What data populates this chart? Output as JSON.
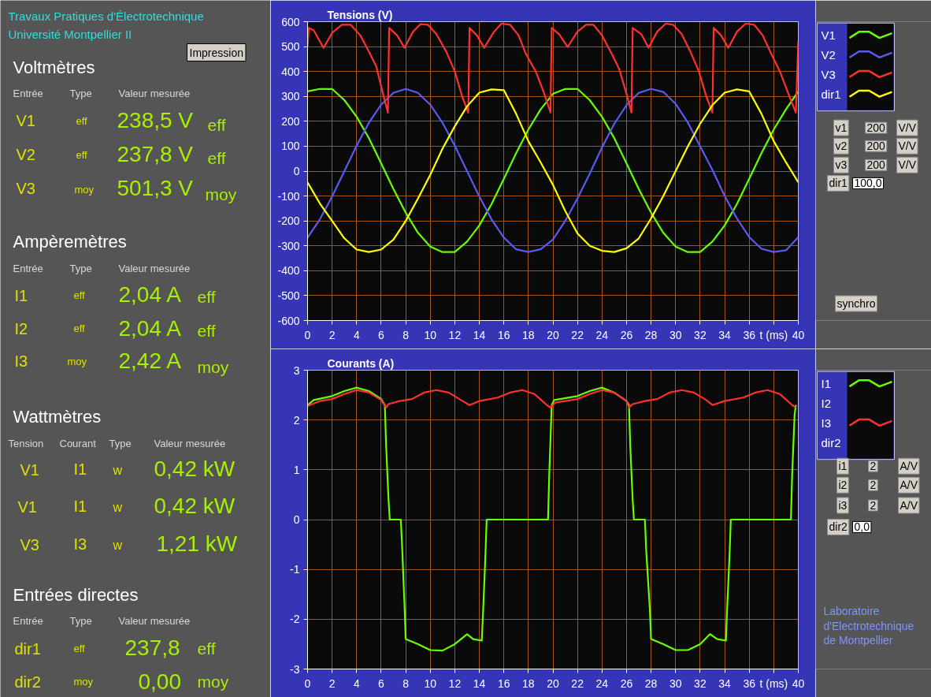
{
  "chart_data": [
    {
      "type": "other",
      "annotations": [
        "Travaux Pratiques d'Électrotechnique",
        "Université Montpellier II",
        "Impression",
        "Voltmètres",
        "Entrée",
        "Type",
        "Valeur mesurée",
        "V1",
        "eff",
        "238,5 V",
        "eff",
        "V2",
        "eff",
        "237,8 V",
        "eff",
        "V3",
        "moy",
        "501,3 V",
        "moy",
        "Ampèremètres",
        "Entrée",
        "Type",
        "Valeur mesurée",
        "I1",
        "eff",
        "2,04 A",
        "eff",
        "I2",
        "eff",
        "2,04 A",
        "eff",
        "I3",
        "moy",
        "2,42 A",
        "moy",
        "Wattmètres",
        "Tension",
        "Courant",
        "Type",
        "Valeur mesurée",
        "V1",
        "I1",
        "w",
        "0,42 kW",
        "V1",
        "I1",
        "w",
        "0,42 kW",
        "V3",
        "I3",
        "w",
        "1,21 kW",
        "Entrées directes",
        "Entrée",
        "Type",
        "Valeur mesurée",
        "dir1",
        "eff",
        "237,8",
        "eff",
        "dir2",
        "moy",
        "0,00",
        "moy"
      ]
    },
    {
      "type": "line",
      "title": "Tensions (V)",
      "xlabel": "t (ms)",
      "xlim": [
        0,
        40
      ],
      "ylim": [
        -600,
        600
      ],
      "xticks": [
        0,
        2,
        4,
        6,
        8,
        10,
        12,
        14,
        16,
        18,
        20,
        22,
        24,
        26,
        28,
        30,
        32,
        34,
        36,
        {
          "value": 38,
          "label": null
        },
        40
      ],
      "yticks": [
        -600,
        -500,
        -400,
        -300,
        -200,
        -100,
        0,
        100,
        200,
        300,
        400,
        500,
        600
      ],
      "grid": true,
      "legend": "right",
      "annotations": [
        "v1",
        "200",
        "V/V",
        "v2",
        "200",
        "V/V",
        "v3",
        "200",
        "V/V",
        "dir1",
        "100,0",
        "synchro"
      ],
      "series": [
        {
          "name": "V1",
          "color": "#66ff00",
          "x": [
            0,
            1,
            2,
            3,
            4,
            5,
            6,
            7,
            8,
            9,
            10,
            11,
            12,
            13,
            14,
            15,
            16,
            17,
            18,
            19,
            20,
            21,
            22,
            23,
            24,
            25,
            26,
            27,
            28,
            29,
            30,
            31,
            32,
            33,
            34,
            35,
            36,
            37,
            38,
            39,
            40
          ],
          "values": [
            320,
            330,
            330,
            285,
            218,
            132,
            31,
            -72,
            -167,
            -248,
            -303,
            -325,
            -325,
            -283,
            -218,
            -132,
            -31,
            72,
            167,
            248,
            310,
            330,
            330,
            285,
            218,
            132,
            31,
            -72,
            -167,
            -248,
            -303,
            -325,
            -325,
            -283,
            -218,
            -132,
            -31,
            72,
            167,
            248,
            320
          ]
        },
        {
          "name": "V2",
          "color": "#5a5aee",
          "x": [
            0,
            1,
            2,
            3,
            4,
            5,
            6,
            7,
            8,
            9,
            10,
            11,
            12,
            13,
            14,
            15,
            16,
            17,
            18,
            19,
            20,
            21,
            22,
            23,
            24,
            25,
            26,
            27,
            28,
            29,
            30,
            31,
            32,
            33,
            34,
            35,
            36,
            37,
            38,
            39,
            40
          ],
          "values": [
            -267,
            -194,
            -102,
            0,
            102,
            194,
            267,
            314,
            330,
            314,
            267,
            194,
            102,
            0,
            -102,
            -194,
            -267,
            -314,
            -325,
            -314,
            -275,
            -200,
            -110,
            -10,
            95,
            190,
            265,
            314,
            330,
            318,
            270,
            195,
            100,
            5,
            -100,
            -190,
            -265,
            -312,
            -325,
            -318,
            -265
          ]
        },
        {
          "name": "V3",
          "color": "#ff3030",
          "x": [
            0,
            0.1,
            0.5,
            1.3,
            2,
            2.8,
            3.5,
            4.3,
            5,
            5.6,
            6.1,
            6.55,
            6.65,
            7.3,
            7.9,
            8.6,
            9.2,
            9.8,
            10.5,
            11.3,
            12,
            12.6,
            13.1,
            13.2,
            13.8,
            14.4,
            15.2,
            15.8,
            16.5,
            17.2,
            17.8,
            18.6,
            19.3,
            19.8,
            19.9,
            20.5,
            21.2,
            22,
            22.7,
            23.3,
            24,
            24.8,
            25.4,
            26,
            26.4,
            26.5,
            27.2,
            27.8,
            28.5,
            29.2,
            29.8,
            30.5,
            31.2,
            31.9,
            32.5,
            33,
            33.1,
            33.7,
            34.3,
            35,
            35.7,
            36.4,
            37.1,
            37.8,
            38.5,
            39.2,
            39.8,
            39.9,
            40
          ],
          "values": [
            500,
            575,
            565,
            495,
            555,
            588,
            588,
            545,
            480,
            420,
            320,
            235,
            575,
            545,
            495,
            560,
            590,
            588,
            550,
            480,
            400,
            300,
            235,
            575,
            545,
            495,
            560,
            592,
            588,
            545,
            470,
            400,
            310,
            235,
            575,
            550,
            498,
            560,
            588,
            588,
            545,
            470,
            410,
            310,
            235,
            575,
            550,
            495,
            560,
            592,
            588,
            550,
            480,
            400,
            300,
            235,
            575,
            545,
            495,
            560,
            592,
            588,
            545,
            470,
            400,
            310,
            235,
            380,
            520
          ]
        },
        {
          "name": "dir1",
          "color": "#ffff00",
          "x": [
            0,
            1,
            2,
            3,
            4,
            5,
            6,
            7,
            8,
            9,
            10,
            11,
            12,
            13,
            14,
            15,
            16,
            17,
            18,
            19,
            20,
            21,
            22,
            23,
            24,
            25,
            26,
            27,
            28,
            29,
            30,
            31,
            32,
            33,
            34,
            35,
            36,
            37,
            38,
            39,
            40
          ],
          "values": [
            -45,
            -130,
            -200,
            -270,
            -315,
            -325,
            -315,
            -275,
            -200,
            -110,
            -15,
            90,
            180,
            260,
            315,
            328,
            325,
            230,
            120,
            35,
            -55,
            -160,
            -250,
            -300,
            -320,
            -325,
            -310,
            -270,
            -190,
            -100,
            0,
            100,
            190,
            265,
            315,
            328,
            320,
            230,
            120,
            35,
            -45
          ]
        }
      ]
    },
    {
      "type": "line",
      "title": "Courants (A)",
      "xlabel": "t (ms)",
      "xlim": [
        0,
        40
      ],
      "ylim": [
        -3,
        3
      ],
      "xticks": [
        0,
        2,
        4,
        6,
        8,
        10,
        12,
        14,
        16,
        18,
        20,
        22,
        24,
        26,
        28,
        30,
        32,
        34,
        36,
        {
          "value": 38,
          "label": null
        },
        40
      ],
      "yticks": [
        -3,
        -2,
        -1,
        0,
        1,
        2,
        3
      ],
      "grid": true,
      "legend": "right",
      "annotations": [
        "i1",
        "2",
        "A/V",
        "i2",
        "2",
        "A/V",
        "i3",
        "2",
        "A/V",
        "dir2",
        "0,0",
        "Laboratoire",
        "d'Electrotechnique",
        "de Montpellier"
      ],
      "series": [
        {
          "name": "I1",
          "color": "#66ff00",
          "x": [
            0,
            0.5,
            2,
            3,
            4,
            5,
            6,
            6.3,
            6.4,
            6.6,
            6.7,
            7.6,
            7.7,
            7.9,
            8,
            9,
            10,
            11,
            12,
            13,
            13.5,
            14.2,
            14.3,
            14.5,
            14.6,
            19.6,
            19.7,
            19.9,
            20.1,
            22,
            23,
            24,
            25,
            26,
            26.2,
            26.3,
            26.5,
            26.6,
            27.5,
            27.6,
            27.9,
            28,
            29,
            30,
            31,
            32,
            32.8,
            33.4,
            34.1,
            34.2,
            34.4,
            34.5,
            39.4,
            39.5,
            39.7,
            39.8
          ],
          "values": [
            2.3,
            2.4,
            2.48,
            2.58,
            2.65,
            2.58,
            2.42,
            2.3,
            1.5,
            0.4,
            0,
            0,
            -0.5,
            -1.7,
            -2.4,
            -2.5,
            -2.62,
            -2.63,
            -2.5,
            -2.3,
            -2.4,
            -2.43,
            -1.9,
            -0.7,
            0,
            0,
            0.9,
            2.3,
            2.4,
            2.48,
            2.58,
            2.65,
            2.55,
            2.38,
            2.3,
            1.5,
            0.4,
            0,
            0,
            -0.6,
            -1.8,
            -2.4,
            -2.5,
            -2.62,
            -2.62,
            -2.5,
            -2.3,
            -2.4,
            -2.43,
            -1.8,
            -0.7,
            0,
            0,
            0.9,
            2.1,
            2.3
          ]
        },
        {
          "name": "I2"
        },
        {
          "name": "I3",
          "color": "#ff3030",
          "x": [
            0,
            1,
            2,
            3,
            4,
            5,
            6,
            6.4,
            6.6,
            7.5,
            8.5,
            9.5,
            10.5,
            11.5,
            12.5,
            13.2,
            14,
            15.5,
            16.5,
            17.5,
            18.5,
            19.5,
            19.8,
            20.2,
            22,
            23,
            24,
            25,
            26,
            26.2,
            26.5,
            27.5,
            28.5,
            29.5,
            30.5,
            31.5,
            32.5,
            33,
            34,
            35.5,
            36.5,
            37.5,
            38.5,
            39.5,
            39.8
          ],
          "values": [
            2.28,
            2.38,
            2.42,
            2.52,
            2.6,
            2.55,
            2.4,
            2.25,
            2.32,
            2.38,
            2.42,
            2.55,
            2.6,
            2.55,
            2.4,
            2.3,
            2.38,
            2.45,
            2.55,
            2.6,
            2.52,
            2.3,
            2.25,
            2.35,
            2.42,
            2.52,
            2.6,
            2.55,
            2.38,
            2.25,
            2.32,
            2.38,
            2.42,
            2.55,
            2.6,
            2.55,
            2.4,
            2.3,
            2.38,
            2.45,
            2.55,
            2.6,
            2.52,
            2.3,
            2.25
          ]
        },
        {
          "name": "dir2"
        }
      ]
    }
  ]
}
